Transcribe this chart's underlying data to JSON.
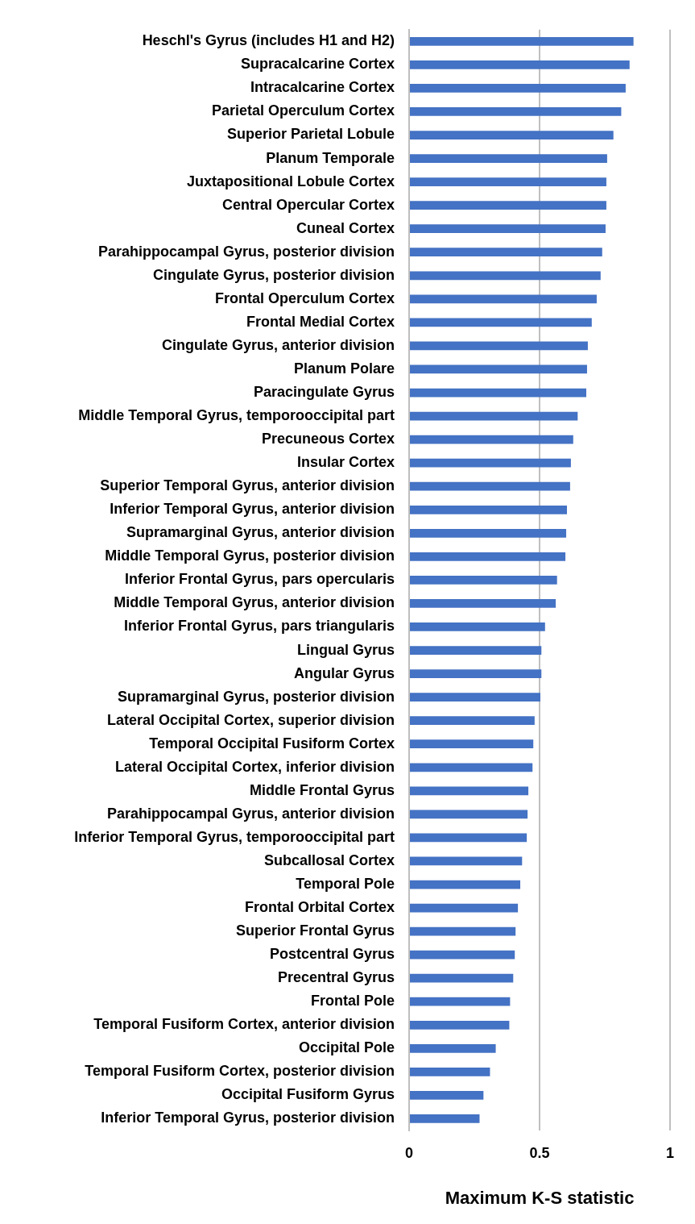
{
  "chart_data": {
    "type": "bar",
    "orientation": "horizontal",
    "xlabel": "Maximum K-S statistic",
    "categories": [
      "Heschl's Gyrus (includes H1 and H2)",
      "Supracalcarine Cortex",
      "Intracalcarine Cortex",
      "Parietal Operculum Cortex",
      "Superior Parietal Lobule",
      "Planum Temporale",
      "Juxtapositional Lobule Cortex",
      "Central Opercular Cortex",
      "Cuneal Cortex",
      "Parahippocampal Gyrus, posterior division",
      "Cingulate Gyrus, posterior division",
      "Frontal Operculum Cortex",
      "Frontal Medial Cortex",
      "Cingulate Gyrus, anterior division",
      "Planum Polare",
      "Paracingulate Gyrus",
      "Middle Temporal Gyrus, temporooccipital part",
      "Precuneous Cortex",
      "Insular Cortex",
      "Superior Temporal Gyrus, anterior division",
      "Inferior Temporal Gyrus, anterior division",
      "Supramarginal Gyrus, anterior division",
      "Middle Temporal Gyrus, posterior division",
      "Inferior Frontal Gyrus, pars opercularis",
      "Middle Temporal Gyrus, anterior division",
      "Inferior Frontal Gyrus, pars triangularis",
      "Lingual Gyrus",
      "Angular Gyrus",
      "Supramarginal Gyrus, posterior division",
      "Lateral Occipital Cortex, superior division",
      "Temporal Occipital Fusiform Cortex",
      "Lateral Occipital Cortex, inferior division",
      "Middle Frontal Gyrus",
      "Parahippocampal Gyrus, anterior division",
      "Inferior Temporal Gyrus, temporooccipital part",
      "Subcallosal Cortex",
      "Temporal Pole",
      "Frontal Orbital Cortex",
      "Superior Frontal Gyrus",
      "Postcentral Gyrus",
      "Precentral Gyrus",
      "Frontal Pole",
      "Temporal Fusiform Cortex, anterior division",
      "Occipital Pole",
      "Temporal Fusiform Cortex, posterior division",
      "Occipital Fusiform Gyrus",
      "Inferior Temporal Gyrus, posterior division"
    ],
    "values": [
      0.86,
      0.845,
      0.83,
      0.813,
      0.783,
      0.759,
      0.756,
      0.756,
      0.753,
      0.74,
      0.734,
      0.719,
      0.7,
      0.685,
      0.682,
      0.679,
      0.646,
      0.629,
      0.62,
      0.617,
      0.605,
      0.602,
      0.599,
      0.567,
      0.562,
      0.521,
      0.507,
      0.507,
      0.503,
      0.481,
      0.476,
      0.473,
      0.457,
      0.454,
      0.451,
      0.433,
      0.426,
      0.417,
      0.408,
      0.405,
      0.399,
      0.387,
      0.384,
      0.332,
      0.31,
      0.285,
      0.27
    ],
    "color": "#4472c4",
    "xlim": [
      0,
      1
    ],
    "xticks": [
      0,
      0.5,
      1
    ],
    "grid": "x",
    "legend": false
  }
}
